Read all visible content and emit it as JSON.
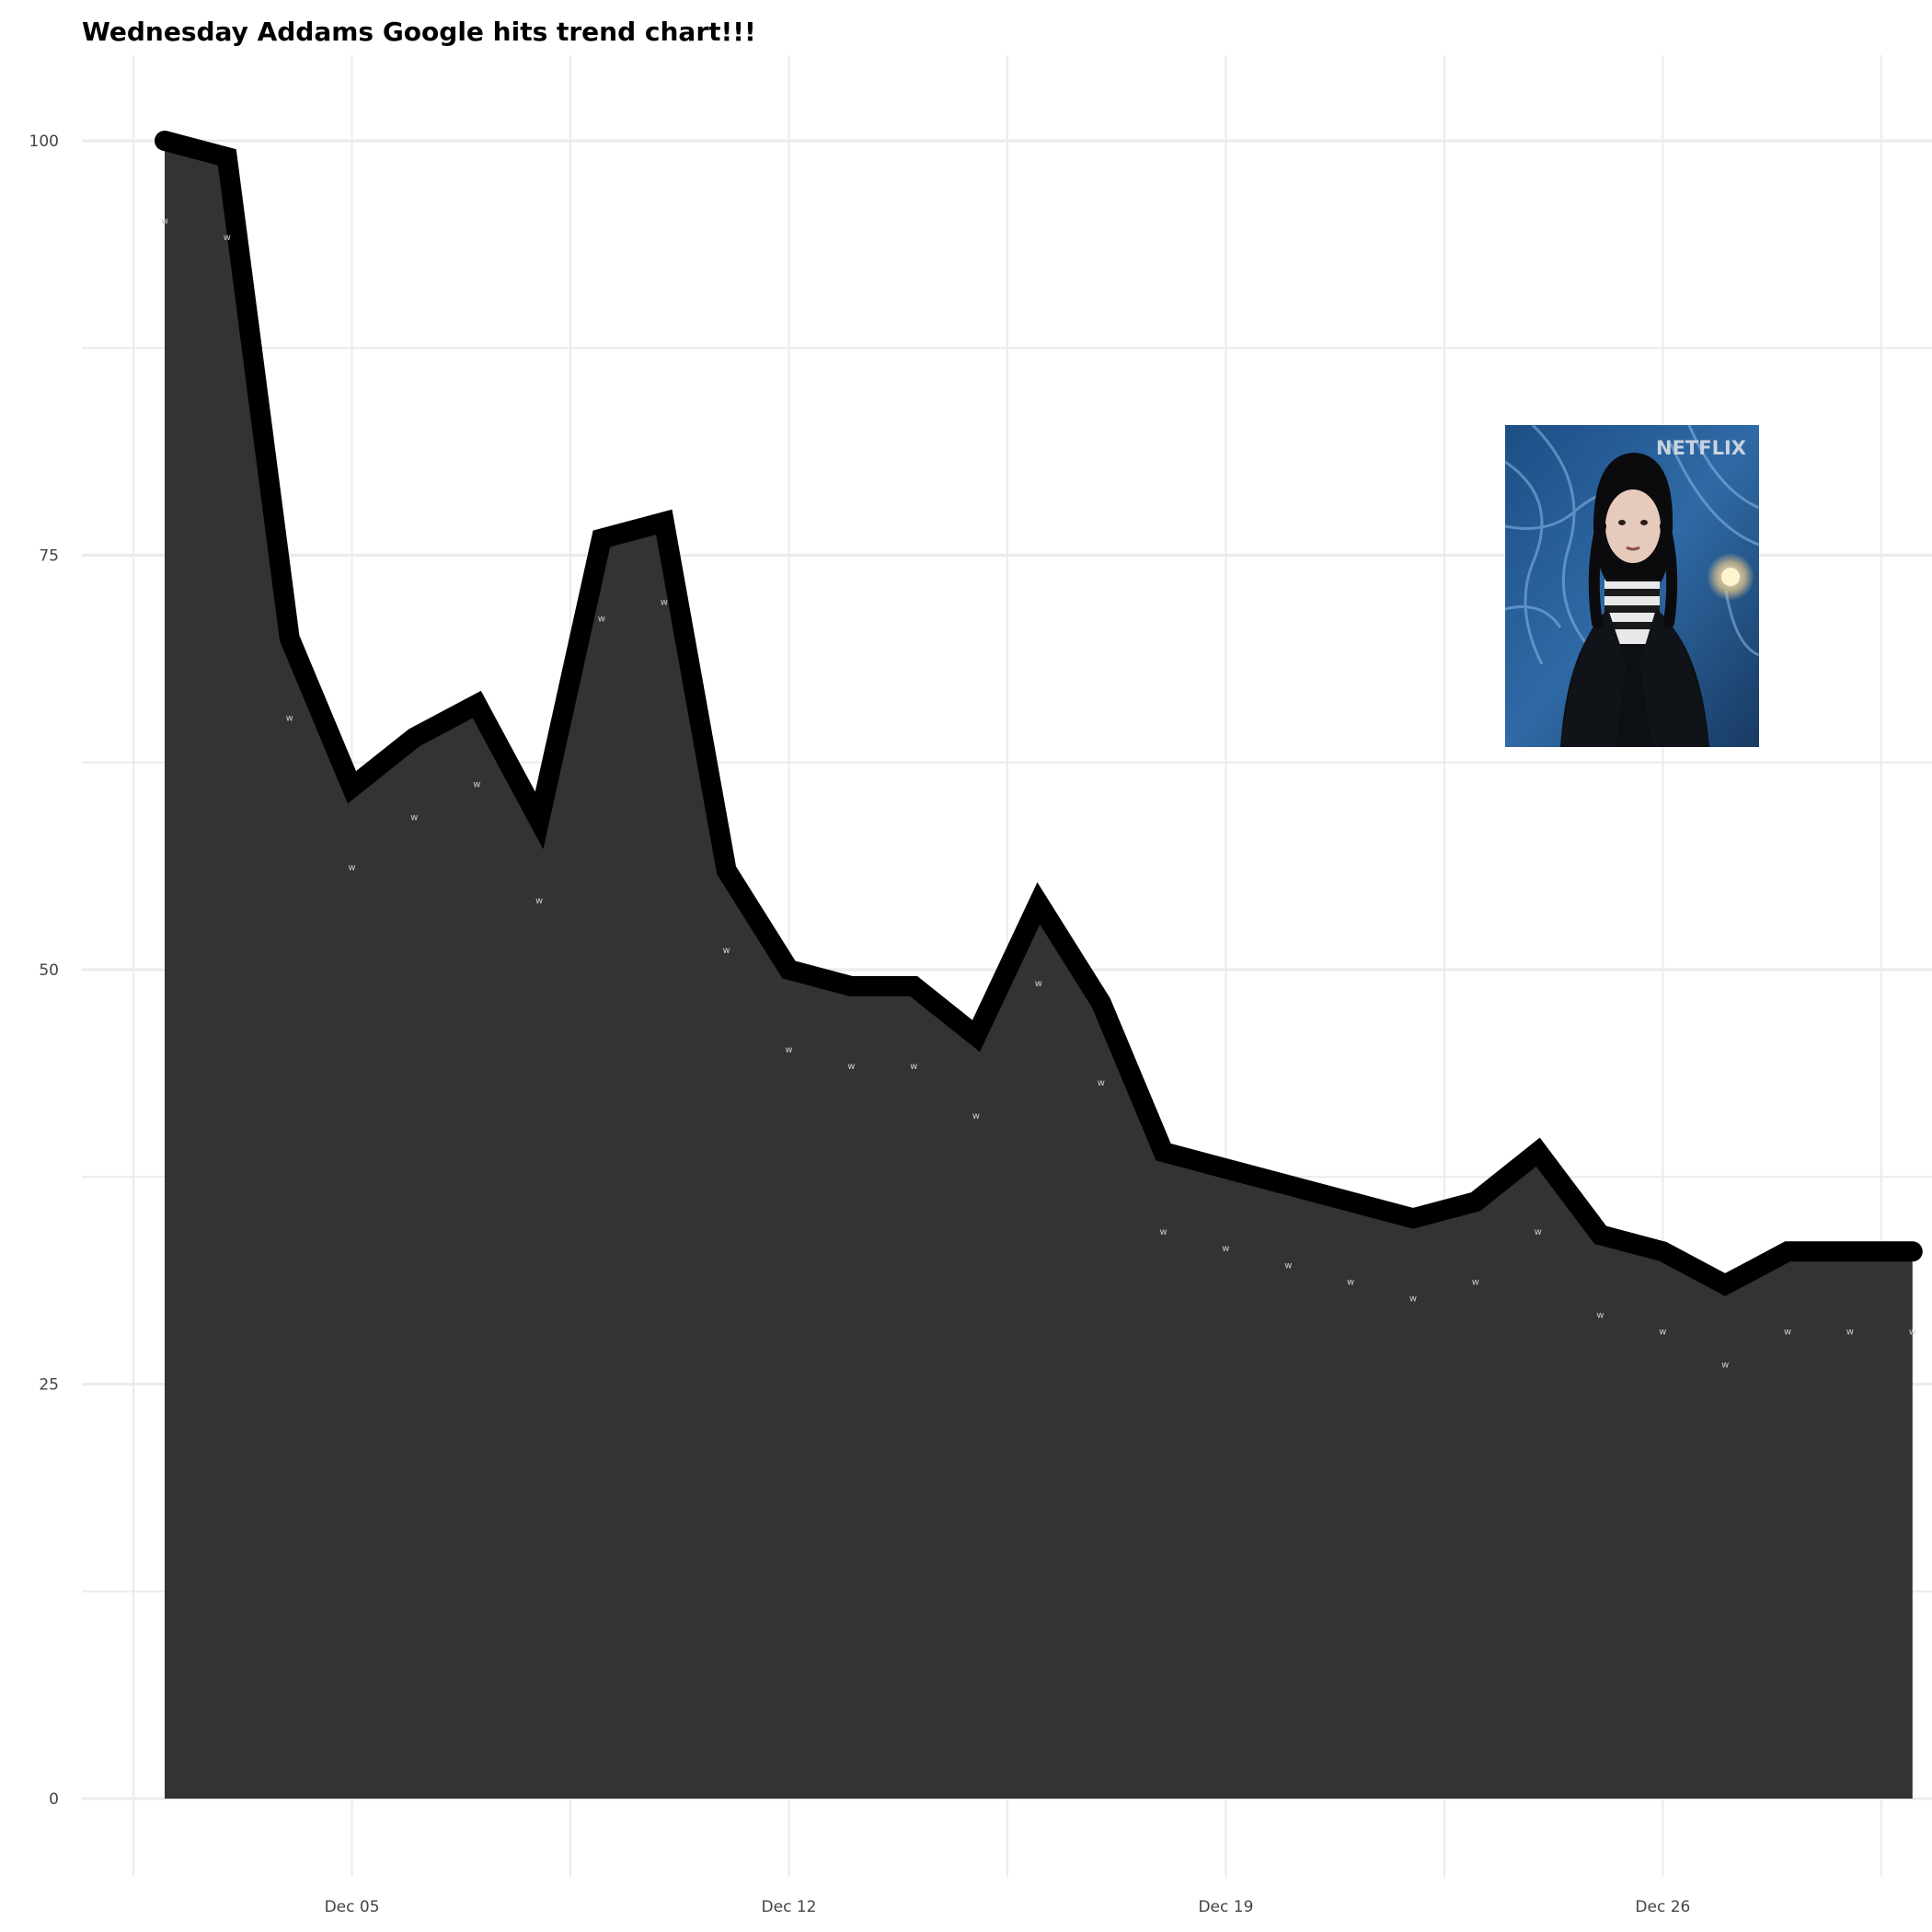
{
  "chart_data": {
    "type": "area",
    "title": "Wednesday Addams Google hits trend chart!!!",
    "xlabel": "",
    "ylabel": "",
    "x": [
      "2022-12-02",
      "2022-12-03",
      "2022-12-04",
      "2022-12-05",
      "2022-12-06",
      "2022-12-07",
      "2022-12-08",
      "2022-12-09",
      "2022-12-10",
      "2022-12-11",
      "2022-12-12",
      "2022-12-13",
      "2022-12-14",
      "2022-12-15",
      "2022-12-16",
      "2022-12-17",
      "2022-12-18",
      "2022-12-19",
      "2022-12-20",
      "2022-12-21",
      "2022-12-22",
      "2022-12-23",
      "2022-12-24",
      "2022-12-25",
      "2022-12-26",
      "2022-12-27",
      "2022-12-28",
      "2022-12-29",
      "2022-12-30"
    ],
    "values": [
      100,
      99,
      70,
      61,
      64,
      66,
      59,
      76,
      77,
      56,
      50,
      49,
      49,
      46,
      54,
      48,
      39,
      38,
      37,
      36,
      35,
      36,
      39,
      34,
      33,
      31,
      33,
      33,
      33
    ],
    "point_labels": [
      "w",
      "w",
      "w",
      "w",
      "w",
      "w",
      "w",
      "w",
      "w",
      "w",
      "w",
      "w",
      "w",
      "w",
      "w",
      "w",
      "w",
      "w",
      "w",
      "w",
      "w",
      "w",
      "w",
      "w",
      "w",
      "w",
      "w",
      "w",
      "w"
    ],
    "ylim": [
      -5,
      105
    ],
    "yticks": [
      {
        "value": 0,
        "label": "0"
      },
      {
        "value": 25,
        "label": "25"
      },
      {
        "value": 50,
        "label": "50"
      },
      {
        "value": 75,
        "label": "75"
      },
      {
        "value": 100,
        "label": "100"
      }
    ],
    "xticks": [
      {
        "date": "2022-12-05",
        "label": "Dec 05"
      },
      {
        "date": "2022-12-12",
        "label": "Dec 12"
      },
      {
        "date": "2022-12-19",
        "label": "Dec 19"
      },
      {
        "date": "2022-12-26",
        "label": "Dec 26"
      }
    ],
    "grid": true,
    "legend": "none",
    "colors": {
      "area_fill": "#333333",
      "line": "#000000",
      "grid": "#ebebeb",
      "point_label": "#cccccc"
    },
    "image": {
      "placement": "top-right",
      "logo_text": "NETFLIX",
      "description_icon": "wednesday-addams-photo"
    }
  }
}
